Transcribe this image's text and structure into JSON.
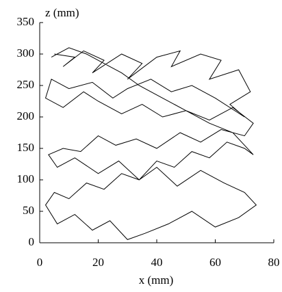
{
  "chart_data": {
    "type": "line",
    "xlabel": "x (mm)",
    "ylabel": "z (mm)",
    "x": [
      5,
      12,
      8,
      15,
      22,
      18,
      28,
      35,
      30,
      40,
      48,
      45,
      55,
      62,
      58,
      68,
      72,
      65,
      70,
      60,
      52,
      45,
      38,
      30,
      25,
      18,
      10,
      4,
      2,
      8,
      15,
      20,
      28,
      35,
      42,
      50,
      58,
      66,
      73,
      70,
      62,
      55,
      48,
      40,
      33,
      26,
      20,
      14,
      8,
      3,
      6,
      12,
      20,
      27,
      34,
      40,
      47,
      55,
      63,
      70,
      74,
      68,
      60,
      52,
      44,
      36,
      30,
      24,
      18,
      12,
      6,
      2,
      5,
      10,
      16,
      22,
      28,
      34,
      40,
      46,
      52,
      58,
      64,
      70,
      73,
      66,
      58,
      50,
      42,
      34,
      28,
      22,
      16,
      10,
      4
    ],
    "series": [
      {
        "color": "#000000",
        "values": [
          300,
          295,
          280,
          305,
          290,
          270,
          300,
          285,
          260,
          295,
          305,
          280,
          300,
          290,
          260,
          275,
          240,
          220,
          200,
          230,
          250,
          240,
          260,
          245,
          230,
          255,
          245,
          260,
          230,
          215,
          240,
          225,
          205,
          220,
          200,
          210,
          195,
          215,
          190,
          170,
          180,
          160,
          175,
          150,
          165,
          155,
          170,
          145,
          150,
          140,
          120,
          135,
          110,
          130,
          100,
          120,
          90,
          115,
          95,
          80,
          60,
          40,
          25,
          50,
          30,
          15,
          5,
          35,
          20,
          45,
          30,
          60,
          80,
          70,
          95,
          85,
          110,
          100,
          130,
          120,
          145,
          135,
          160,
          150,
          140,
          175,
          190,
          210,
          230,
          250,
          270,
          285,
          300,
          310,
          295
        ]
      }
    ],
    "xlim": [
      0,
      80
    ],
    "xticks": [
      0,
      20,
      40,
      60,
      80
    ],
    "ylim": [
      0,
      350
    ],
    "yticks": [
      0,
      50,
      100,
      150,
      200,
      250,
      300,
      350
    ]
  }
}
